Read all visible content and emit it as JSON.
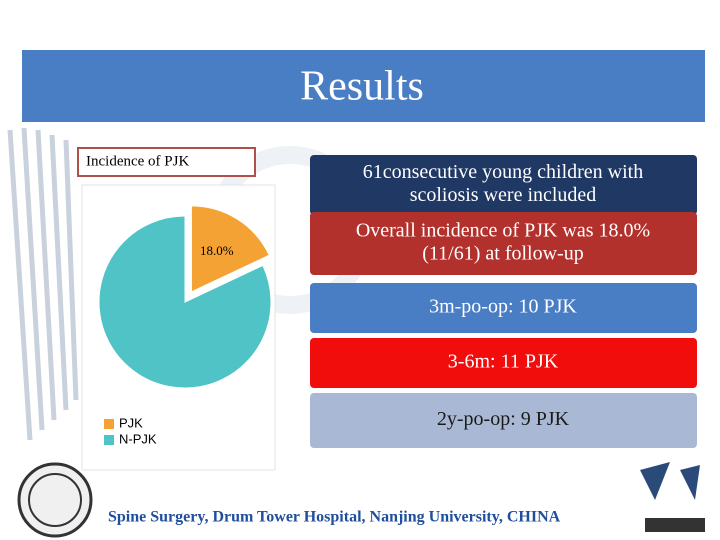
{
  "header": {
    "title": "Results"
  },
  "chart_data": {
    "type": "pie",
    "title": "Incidence of PJK",
    "categories": [
      "PJK",
      "N-PJK"
    ],
    "values": [
      18.0,
      82.0
    ],
    "value_labels": [
      "18.0%",
      null
    ],
    "colors": [
      "#f5a234",
      "#4fc3c6"
    ],
    "exploded": [
      true,
      false
    ],
    "legend": "bottom-left"
  },
  "boxes": [
    {
      "lines": [
        "61consecutive young children with",
        "scoliosis were included"
      ],
      "color": "#1f3864"
    },
    {
      "lines": [
        "Overall incidence of PJK was 18.0%",
        "(11/61) at follow-up"
      ],
      "color": "#b3312c"
    },
    {
      "lines": [
        "3m-po-op: 10 PJK"
      ],
      "color": "#4a7ec4"
    },
    {
      "lines": [
        "3-6m: 11 PJK"
      ],
      "color": "#f20d0d"
    },
    {
      "lines": [
        "2y-po-op: 9 PJK"
      ],
      "color": "#a9b8d4"
    }
  ],
  "footer": {
    "text": "Spine Surgery, Drum Tower Hospital, Nanjing University, CHINA"
  }
}
